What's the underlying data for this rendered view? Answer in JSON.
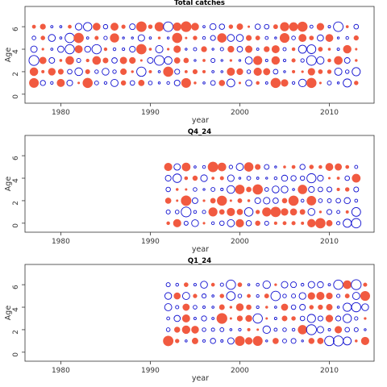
{
  "figure": {
    "colors": {
      "positive": "#f15a40",
      "negative": "#1010d0",
      "frame": "#333333"
    },
    "xlabel": "year",
    "ylabel": "Age"
  },
  "chart_data": [
    {
      "type": "scatter",
      "subtype": "bubble-residual",
      "title": "Total catches",
      "xlabel": "year",
      "ylabel": "Age",
      "xlim": [
        1976,
        2015
      ],
      "ylim": [
        -0.8,
        7.8
      ],
      "xticks": [
        1980,
        1990,
        2000,
        2010
      ],
      "yticks": [
        0,
        2,
        4,
        6
      ],
      "years": [
        1977,
        2013
      ],
      "ages": [
        1,
        6
      ],
      "grid": false,
      "legend": "none"
    },
    {
      "type": "scatter",
      "subtype": "bubble-residual",
      "title": "Q4_24",
      "xlabel": "year",
      "ylabel": "Age",
      "xlim": [
        1976,
        2015
      ],
      "ylim": [
        -0.8,
        7.8
      ],
      "xticks": [
        1980,
        1990,
        2000,
        2010
      ],
      "yticks": [
        0,
        2,
        4,
        6
      ],
      "years": [
        1992,
        2013
      ],
      "ages": [
        0,
        5
      ],
      "grid": false,
      "legend": "none"
    },
    {
      "type": "scatter",
      "subtype": "bubble-residual",
      "title": "Q1_24",
      "xlabel": "year",
      "ylabel": "Age",
      "xlim": [
        1976,
        2015
      ],
      "ylim": [
        -0.8,
        7.8
      ],
      "xticks": [
        1980,
        1990,
        2000,
        2010
      ],
      "yticks": [
        0,
        2,
        4,
        6
      ],
      "years": [
        1992,
        2014
      ],
      "ages": [
        1,
        6
      ],
      "grid": false,
      "legend": "none"
    }
  ]
}
